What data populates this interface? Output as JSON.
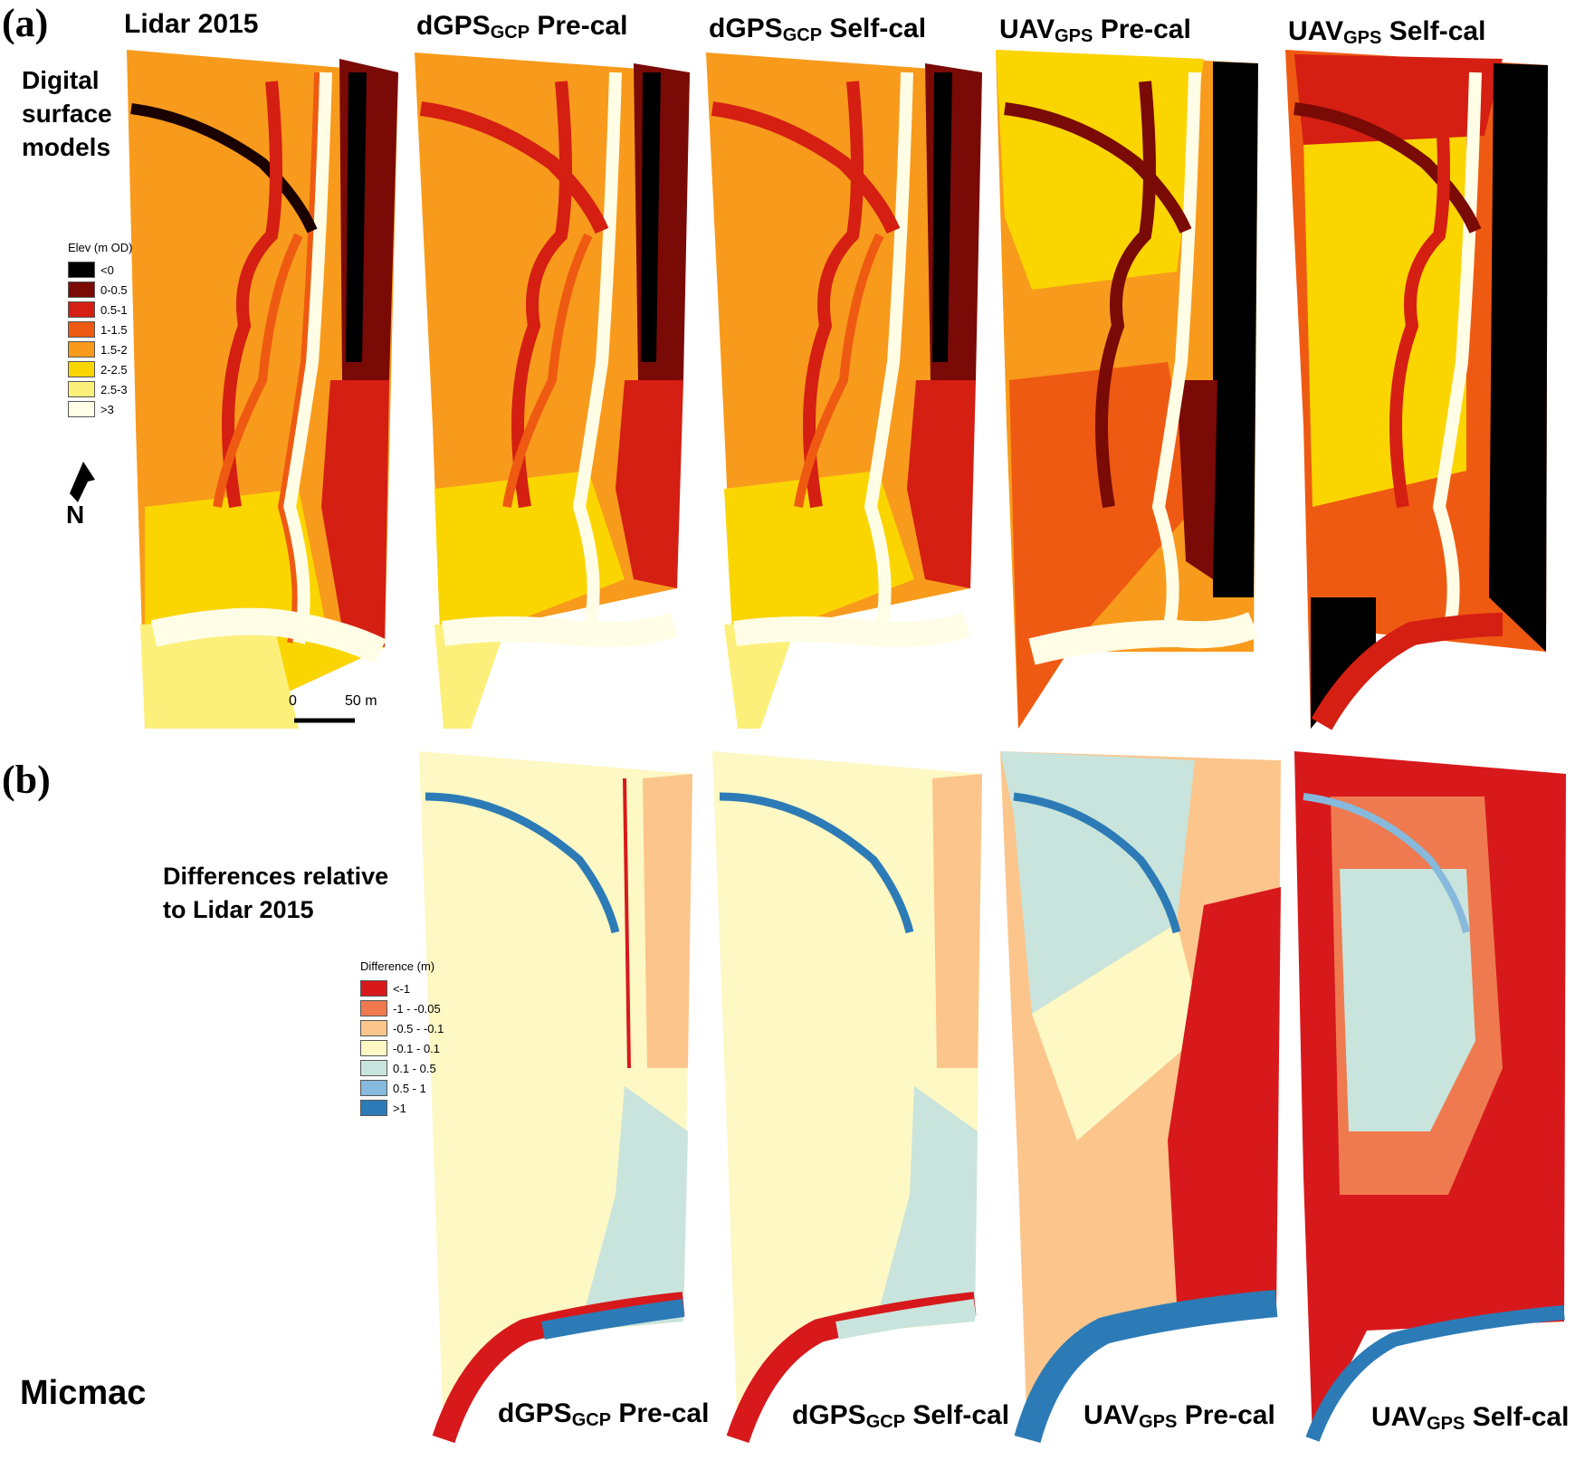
{
  "panel_a": {
    "label": "(a)",
    "side_label": [
      "Digital",
      "surface",
      "models"
    ],
    "titles": [
      {
        "main": "Lidar 2015",
        "sub": "",
        "rest": ""
      },
      {
        "main": "dGPS",
        "sub": "GCP",
        "rest": " Pre-cal"
      },
      {
        "main": "dGPS",
        "sub": "GCP",
        "rest": " Self-cal"
      },
      {
        "main": "UAV",
        "sub": "GPS",
        "rest": " Pre-cal"
      },
      {
        "main": "UAV",
        "sub": "GPS",
        "rest": " Self-cal"
      }
    ],
    "legend": {
      "title": "Elev (m OD)",
      "items": [
        {
          "label": "<0",
          "color": "#000000"
        },
        {
          "label": "0-0.5",
          "color": "#7a0a06"
        },
        {
          "label": "0.5-1",
          "color": "#d41f12"
        },
        {
          "label": "1-1.5",
          "color": "#ef5a12"
        },
        {
          "label": "1.5-2",
          "color": "#f89a1c"
        },
        {
          "label": "2-2.5",
          "color": "#fbd500"
        },
        {
          "label": "2.5-3",
          "color": "#fdf07a"
        },
        {
          "label": ">3",
          "color": "#fffde6"
        }
      ]
    },
    "north_label": "N",
    "scale": {
      "zero": "0",
      "distance": "50 m"
    }
  },
  "panel_b": {
    "label": "(b)",
    "side_label": [
      "Differences relative",
      "to Lidar 2015"
    ],
    "method_label": "Micmac",
    "titles": [
      {
        "main": "dGPS",
        "sub": "GCP",
        "rest": " Pre-cal"
      },
      {
        "main": "dGPS",
        "sub": "GCP",
        "rest": " Self-cal"
      },
      {
        "main": "UAV",
        "sub": "GPS",
        "rest": " Pre-cal"
      },
      {
        "main": "UAV",
        "sub": "GPS",
        "rest": " Self-cal"
      }
    ],
    "legend": {
      "title": "Difference (m)",
      "items": [
        {
          "label": "<-1",
          "color": "#d7191c"
        },
        {
          "label": "-1 - -0.05",
          "color": "#ef7a4f"
        },
        {
          "label": "-0.5 - -0.1",
          "color": "#fbc58c"
        },
        {
          "label": "-0.1 - 0.1",
          "color": "#fdf8c4"
        },
        {
          "label": "0.1 - 0.5",
          "color": "#c9e4dc"
        },
        {
          "label": "0.5 - 1",
          "color": "#86b9dc"
        },
        {
          "label": ">1",
          "color": "#2c7bb6"
        }
      ]
    }
  }
}
